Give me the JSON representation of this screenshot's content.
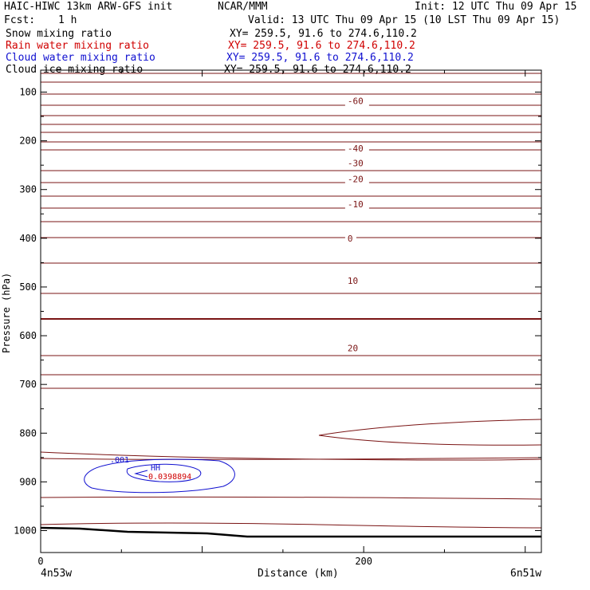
{
  "header": {
    "model": "HAIC-HIWC 13km ARW-GFS init",
    "org": "NCAR/MMM",
    "init": "Init: 12 UTC Thu 09 Apr 15",
    "fcst_label": "Fcst:",
    "fcst_value": "1 h",
    "valid": "Valid: 13 UTC Thu 09 Apr 15 (10 LST Thu 09 Apr 15)"
  },
  "fields": [
    {
      "name": "Snow mixing ratio",
      "xy": "XY= 259.5, 91.6 to 274.6,110.2",
      "color": "#000000"
    },
    {
      "name": "Rain water mixing ratio",
      "xy": "XY= 259.5, 91.6 to 274.6,110.2",
      "color": "#d00000"
    },
    {
      "name": "Cloud water mixing ratio",
      "xy": "XY= 259.5, 91.6 to 274.6,110.2",
      "color": "#1010d0"
    },
    {
      "name": "Cloud ice mixing ratio",
      "xy": "XY= 259.5, 91.6 to 274.6,110.2",
      "color": "#000000"
    }
  ],
  "chart_data": {
    "type": "line",
    "ylabel": "Pressure (hPa)",
    "xlabel": "Distance (km)",
    "x_ticks": [
      0,
      200
    ],
    "y_ticks": [
      100,
      200,
      300,
      400,
      500,
      600,
      700,
      800,
      900,
      1000
    ],
    "xlim": [
      0,
      310
    ],
    "ylim_top": 55,
    "ylim_bottom": 1045,
    "endpoints": {
      "left": "4n53w",
      "right": "6n51w"
    },
    "temperature_contour_labels": [
      {
        "label": "-60",
        "x": 190,
        "p": 118
      },
      {
        "label": "-40",
        "x": 190,
        "p": 215
      },
      {
        "label": "-30",
        "x": 190,
        "p": 246
      },
      {
        "label": "-20",
        "x": 190,
        "p": 278
      },
      {
        "label": "-10",
        "x": 190,
        "p": 330
      },
      {
        "label": "0",
        "x": 190,
        "p": 400
      },
      {
        "label": "10",
        "x": 190,
        "p": 487
      },
      {
        "label": "20",
        "x": 190,
        "p": 625
      }
    ],
    "cloud_water_labels": [
      {
        "label": ".001",
        "color": "#1010d0"
      },
      {
        "label": "HH",
        "color": "#1010d0"
      },
      {
        "label": "0.0398894",
        "color": "#d00000"
      }
    ],
    "contour_color": "#7a1414",
    "surface_color": "#000000"
  }
}
